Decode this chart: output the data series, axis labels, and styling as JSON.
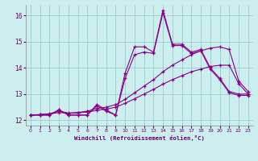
{
  "xlabel": "Windchill (Refroidissement éolien,°C)",
  "bg_color": "#cceeee",
  "line_color": "#880088",
  "grid_color": "#99cccc",
  "xlim": [
    -0.5,
    23.5
  ],
  "ylim": [
    11.8,
    16.4
  ],
  "yticks": [
    12,
    13,
    14,
    15,
    16
  ],
  "xticks": [
    0,
    1,
    2,
    3,
    4,
    5,
    6,
    7,
    8,
    9,
    10,
    11,
    12,
    13,
    14,
    15,
    16,
    17,
    18,
    19,
    20,
    21,
    22,
    23
  ],
  "series": [
    [
      12.2,
      12.2,
      12.2,
      12.4,
      12.2,
      12.2,
      12.2,
      12.6,
      12.4,
      12.2,
      13.8,
      14.8,
      14.8,
      14.6,
      16.2,
      14.9,
      14.9,
      14.6,
      14.7,
      14.0,
      13.6,
      13.1,
      13.0,
      13.0
    ],
    [
      12.2,
      12.2,
      12.2,
      12.4,
      12.2,
      12.2,
      12.2,
      12.55,
      12.35,
      12.2,
      13.6,
      14.5,
      14.6,
      14.55,
      16.1,
      14.85,
      14.85,
      14.55,
      14.65,
      13.95,
      13.55,
      13.05,
      12.95,
      12.95
    ],
    [
      12.2,
      12.22,
      12.25,
      12.35,
      12.28,
      12.3,
      12.35,
      12.45,
      12.5,
      12.6,
      12.8,
      13.05,
      13.3,
      13.55,
      13.85,
      14.1,
      14.3,
      14.5,
      14.65,
      14.75,
      14.8,
      14.7,
      13.5,
      13.1
    ],
    [
      12.2,
      12.22,
      12.24,
      12.3,
      12.27,
      12.28,
      12.32,
      12.38,
      12.43,
      12.5,
      12.65,
      12.82,
      13.0,
      13.18,
      13.38,
      13.55,
      13.7,
      13.85,
      13.95,
      14.05,
      14.1,
      14.1,
      13.4,
      13.0
    ]
  ]
}
